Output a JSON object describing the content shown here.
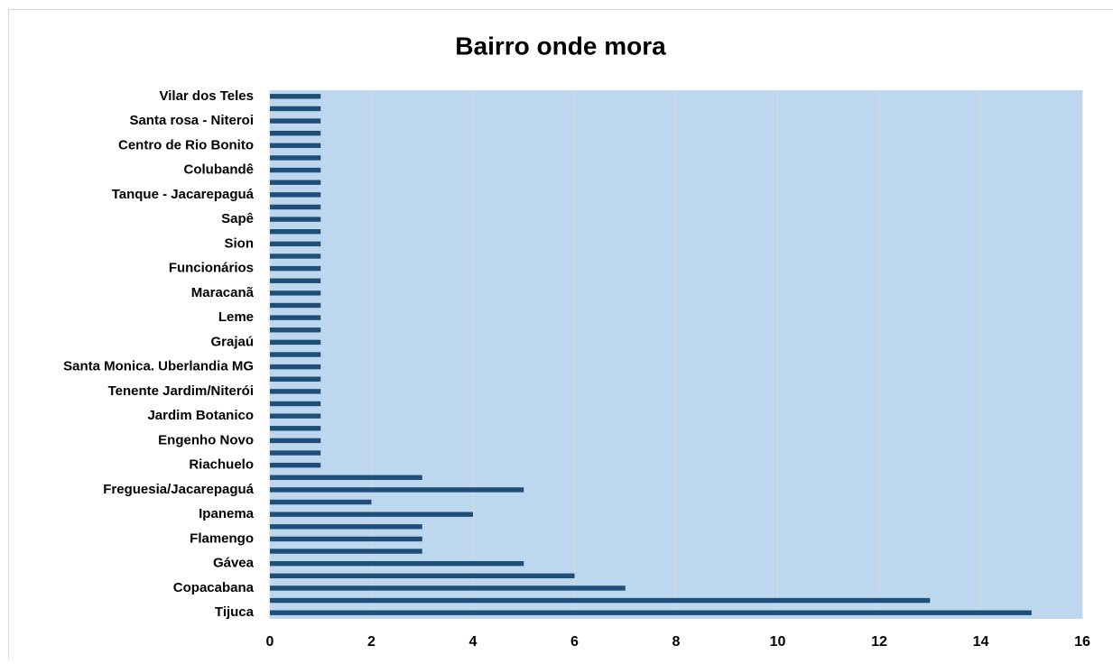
{
  "chart_data": {
    "type": "hbar",
    "title": "Bairro onde mora",
    "categories": [
      "Tijuca",
      null,
      "Copacabana",
      null,
      "Gávea",
      null,
      "Flamengo",
      null,
      "Ipanema",
      null,
      "Freguesia/Jacarepaguá",
      null,
      "Riachuelo",
      null,
      "Engenho Novo",
      null,
      "Jardim Botanico",
      null,
      "Tenente Jardim/Niterói",
      null,
      "Santa Monica. Uberlandia MG",
      null,
      "Grajaú",
      null,
      "Leme",
      null,
      "Maracanã",
      null,
      "Funcionários",
      null,
      "Sion",
      null,
      "Sapê",
      null,
      "Tanque - Jacarepaguá",
      null,
      "Colubandê",
      null,
      "Centro de Rio Bonito",
      null,
      "Santa rosa - Niteroi",
      null,
      "Vilar dos Teles"
    ],
    "values": [
      15,
      13,
      7,
      6,
      5,
      3,
      3,
      3,
      4,
      2,
      5,
      3,
      1,
      1,
      1,
      1,
      1,
      1,
      1,
      1,
      1,
      1,
      1,
      1,
      1,
      1,
      1,
      1,
      1,
      1,
      1,
      1,
      1,
      1,
      1,
      1,
      1,
      1,
      1,
      1,
      1,
      1,
      1
    ],
    "color": "#1f4e79",
    "xlim": [
      0,
      16
    ],
    "xticks": [
      0,
      2,
      4,
      6,
      8,
      10,
      12,
      14,
      16
    ],
    "grid": true
  }
}
